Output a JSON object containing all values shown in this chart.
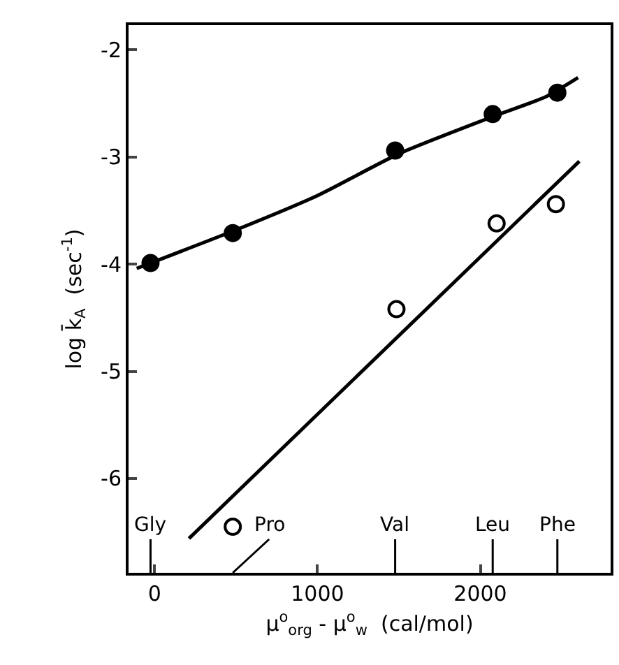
{
  "chart_data": {
    "type": "scatter",
    "xlabel": "μ$^{o}$$_{org}$ - μ$^{o}$$_{w}$  (cal/mol)",
    "ylabel": "log k̄$_{A}$  (sec$^{-1}$)",
    "xlim": [
      -160,
      2800
    ],
    "xticks": [
      0,
      1000,
      2000
    ],
    "ylim": [
      -6.88,
      -1.77
    ],
    "yticks": [
      -2,
      -3,
      -4,
      -5,
      -6
    ],
    "grid": false,
    "marker": "circle",
    "series": [
      {
        "color": "#000000",
        "x": [
          -25,
          480,
          1477,
          2076,
          2473
        ],
        "values": [
          -3.99,
          -3.71,
          -2.94,
          -2.6,
          -2.4
        ]
      },
      {
        "color": "#000000",
        "marker": "circle-open",
        "x": [
          480,
          1485,
          2100,
          2464
        ],
        "values": [
          -6.45,
          -4.42,
          -3.62,
          -3.44
        ]
      },
      {
        "type": "line",
        "marker": "none",
        "color": "#000000",
        "x": [
          -110,
          500,
          1000,
          1500,
          2100,
          2400,
          2600
        ],
        "values": [
          -4.04,
          -3.68,
          -3.36,
          -2.97,
          -2.61,
          -2.44,
          -2.26
        ]
      },
      {
        "type": "line",
        "marker": "none",
        "color": "#000000",
        "x": [
          211,
          2608
        ],
        "values": [
          -6.56,
          -3.04
        ]
      }
    ],
    "annotations": [
      "Gly",
      "Pro",
      "Val",
      "Leu",
      "Phe"
    ]
  }
}
